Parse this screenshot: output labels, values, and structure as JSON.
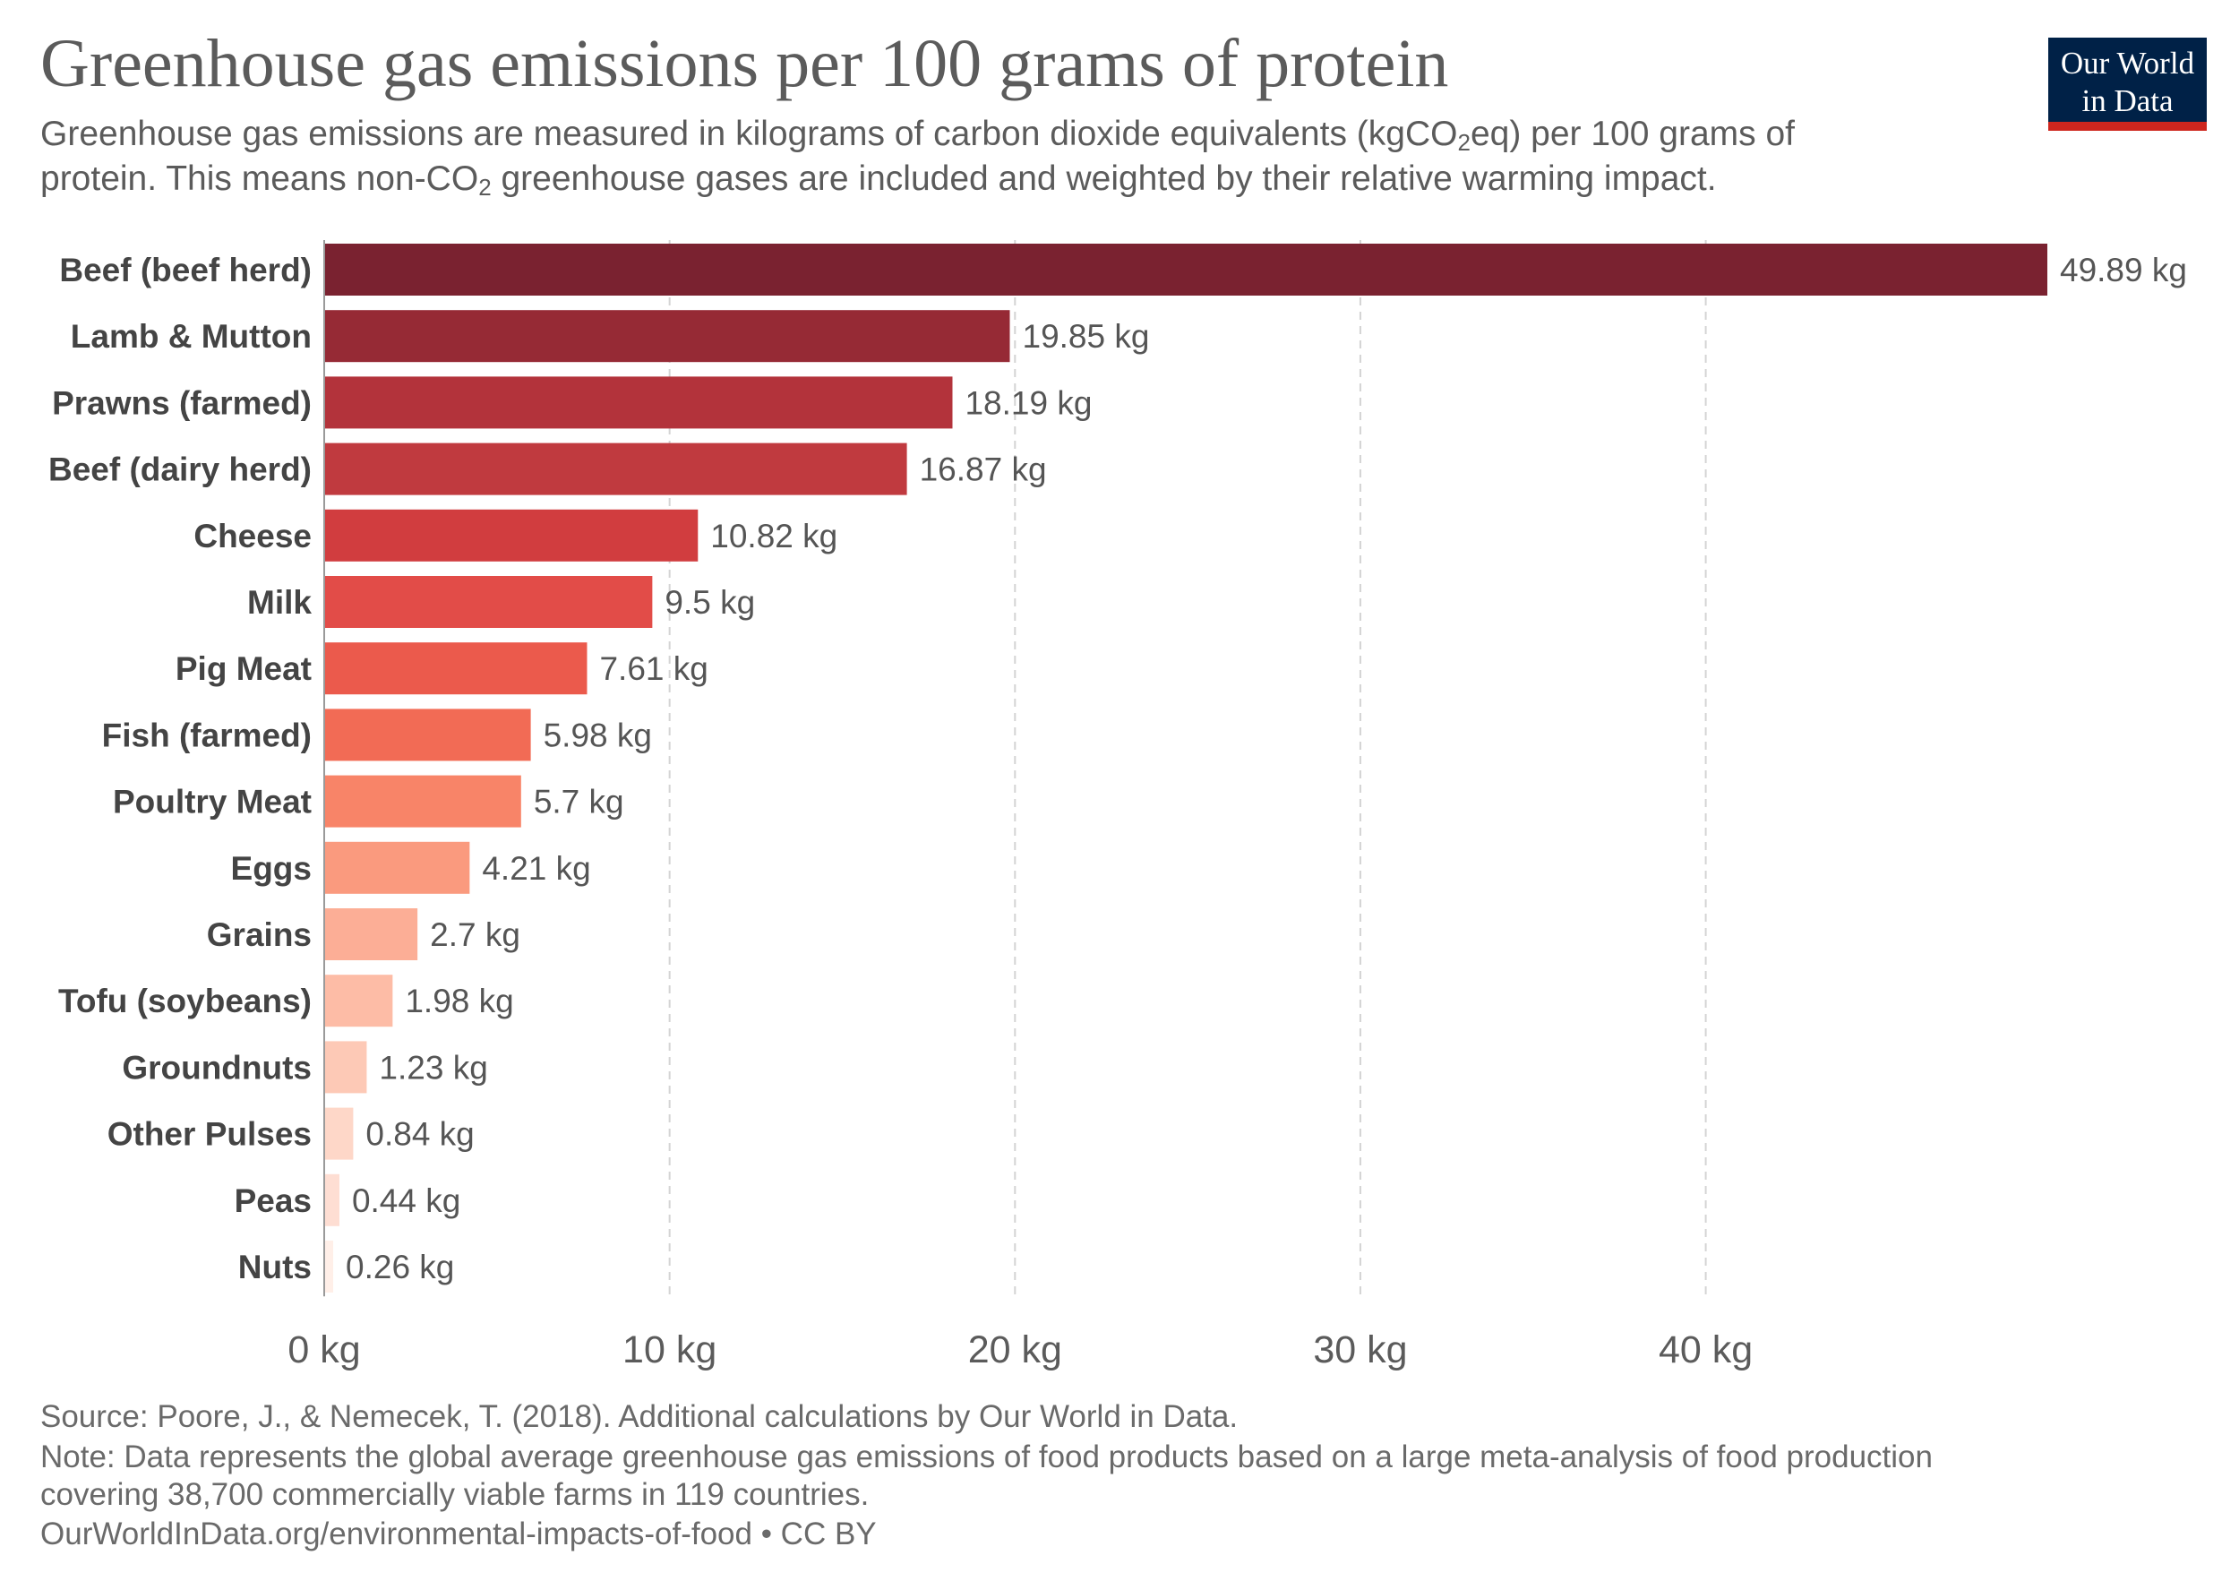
{
  "header": {
    "title": "Greenhouse gas emissions per 100 grams of protein",
    "subtitle_line1_pre": "Greenhouse gas emissions are measured in kilograms of carbon dioxide equivalents (kgCO",
    "subtitle_line1_sub": "2",
    "subtitle_line1_post": "eq) per 100 grams of",
    "subtitle_line2_pre": "protein. This means non-CO",
    "subtitle_line2_sub": "2",
    "subtitle_line2_post": " greenhouse gases are included and weighted by their relative warming impact."
  },
  "logo": {
    "line1": "Our World",
    "line2": "in Data",
    "bg_color": "#002147",
    "accent_color": "#ce261e"
  },
  "footer": {
    "source": "Source: Poore, J., & Nemecek, T. (2018). Additional calculations by Our World in Data.",
    "note_line1": "Note: Data represents the global average greenhouse gas emissions of food products based on a large meta-analysis of food production",
    "note_line2": "covering 38,700 commercially viable farms in 119 countries.",
    "url": "OurWorldInData.org/environmental-impacts-of-food • CC BY"
  },
  "chart_data": {
    "type": "bar",
    "orientation": "horizontal",
    "unit": "kg",
    "categories": [
      "Beef (beef herd)",
      "Lamb & Mutton",
      "Prawns (farmed)",
      "Beef (dairy herd)",
      "Cheese",
      "Milk",
      "Pig Meat",
      "Fish (farmed)",
      "Poultry Meat",
      "Eggs",
      "Grains",
      "Tofu (soybeans)",
      "Groundnuts",
      "Other Pulses",
      "Peas",
      "Nuts"
    ],
    "values": [
      49.89,
      19.85,
      18.19,
      16.87,
      10.82,
      9.5,
      7.61,
      5.98,
      5.7,
      4.21,
      2.7,
      1.98,
      1.23,
      0.84,
      0.44,
      0.26
    ],
    "value_labels": [
      "49.89 kg",
      "19.85 kg",
      "18.19 kg",
      "16.87 kg",
      "10.82 kg",
      "9.5 kg",
      "7.61 kg",
      "5.98 kg",
      "5.7 kg",
      "4.21 kg",
      "2.7 kg",
      "1.98 kg",
      "1.23 kg",
      "0.84 kg",
      "0.44 kg",
      "0.26 kg"
    ],
    "colors": [
      "#7a2230",
      "#962a35",
      "#b3333b",
      "#c03a3f",
      "#d13d3f",
      "#e24c48",
      "#eb5a4c",
      "#f26b55",
      "#f88468",
      "#fa9a7e",
      "#fcae96",
      "#fdbca6",
      "#fdc9b6",
      "#fed7c8",
      "#feded3",
      "#ffefe8"
    ],
    "x_ticks": [
      0,
      10,
      20,
      30,
      40
    ],
    "x_tick_labels": [
      "0 kg",
      "10 kg",
      "20 kg",
      "30 kg",
      "40 kg"
    ],
    "xlim": [
      0,
      49.89
    ],
    "grid": "vertical-dashed",
    "gridline_color": "#d4d4d4",
    "axis_color": "#9a9a9a",
    "label_color": "#444444",
    "value_label_color": "#555555"
  }
}
